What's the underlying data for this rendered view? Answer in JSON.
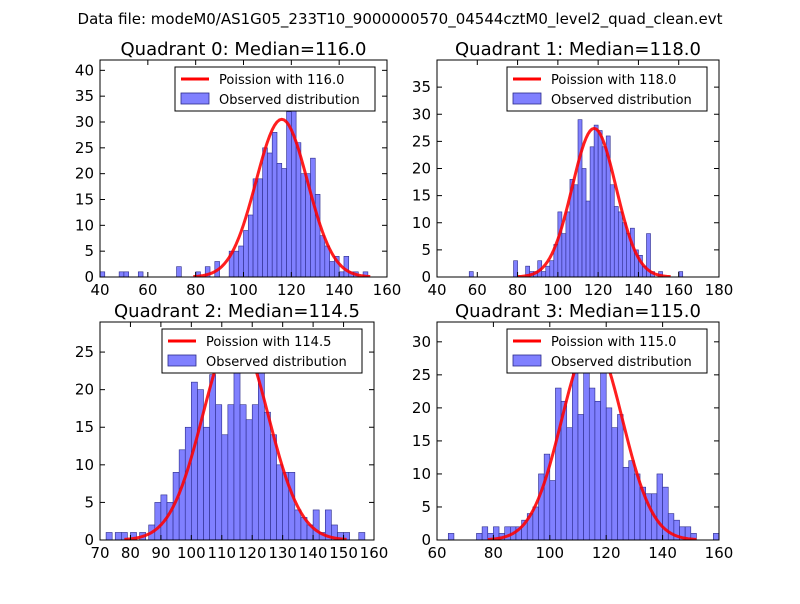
{
  "figure": {
    "suptitle": "Data file: modeM0/AS1G05_233T10_9000000570_04544cztM0_level2_quad_clean.evt"
  },
  "colors": {
    "hist_fill": "#8080ff",
    "hist_edge": "#2a2a8a",
    "curve": "#ff0000",
    "axes": "#000000",
    "background": "#ffffff"
  },
  "chart_data": [
    {
      "type": "bar",
      "title": "Quadrant 0: Median=116.0",
      "median": 116.0,
      "xlim": [
        40,
        160
      ],
      "ylim": [
        0,
        42
      ],
      "xticks": [
        40,
        60,
        80,
        100,
        120,
        140,
        160
      ],
      "yticks": [
        0,
        5,
        10,
        15,
        20,
        25,
        30,
        35,
        40
      ],
      "legend": [
        "Poission with 116.0",
        "Observed distribution"
      ],
      "legend_loc": "upper-right",
      "bins": [
        {
          "x": 40,
          "h": 1
        },
        {
          "x": 48,
          "h": 1
        },
        {
          "x": 50,
          "h": 1
        },
        {
          "x": 56,
          "h": 1
        },
        {
          "x": 72,
          "h": 2
        },
        {
          "x": 80,
          "h": 1
        },
        {
          "x": 84,
          "h": 2
        },
        {
          "x": 88,
          "h": 3
        },
        {
          "x": 94,
          "h": 5
        },
        {
          "x": 96,
          "h": 5
        },
        {
          "x": 98,
          "h": 6
        },
        {
          "x": 100,
          "h": 9
        },
        {
          "x": 102,
          "h": 12
        },
        {
          "x": 104,
          "h": 19
        },
        {
          "x": 106,
          "h": 19
        },
        {
          "x": 108,
          "h": 25
        },
        {
          "x": 110,
          "h": 24
        },
        {
          "x": 112,
          "h": 28
        },
        {
          "x": 114,
          "h": 22
        },
        {
          "x": 116,
          "h": 21
        },
        {
          "x": 118,
          "h": 32
        },
        {
          "x": 120,
          "h": 39
        },
        {
          "x": 122,
          "h": 26
        },
        {
          "x": 124,
          "h": 20
        },
        {
          "x": 126,
          "h": 20
        },
        {
          "x": 128,
          "h": 23
        },
        {
          "x": 130,
          "h": 16
        },
        {
          "x": 132,
          "h": 8
        },
        {
          "x": 134,
          "h": 6
        },
        {
          "x": 136,
          "h": 3
        },
        {
          "x": 138,
          "h": 4
        },
        {
          "x": 140,
          "h": 1
        },
        {
          "x": 142,
          "h": 4
        },
        {
          "x": 144,
          "h": 1
        },
        {
          "x": 146,
          "h": 1
        },
        {
          "x": 150,
          "h": 1
        }
      ]
    },
    {
      "type": "bar",
      "title": "Quadrant 1: Median=118.0",
      "median": 118.0,
      "xlim": [
        40,
        180
      ],
      "ylim": [
        0,
        40
      ],
      "xticks": [
        40,
        60,
        80,
        100,
        120,
        140,
        160,
        180
      ],
      "yticks": [
        0,
        5,
        10,
        15,
        20,
        25,
        30,
        35
      ],
      "legend": [
        "Poission with 118.0",
        "Observed distribution"
      ],
      "legend_loc": "upper-right",
      "bins": [
        {
          "x": 56,
          "h": 1
        },
        {
          "x": 78,
          "h": 3
        },
        {
          "x": 84,
          "h": 2
        },
        {
          "x": 86,
          "h": 1
        },
        {
          "x": 88,
          "h": 1
        },
        {
          "x": 90,
          "h": 3
        },
        {
          "x": 92,
          "h": 1
        },
        {
          "x": 94,
          "h": 2
        },
        {
          "x": 96,
          "h": 3
        },
        {
          "x": 98,
          "h": 6
        },
        {
          "x": 100,
          "h": 12
        },
        {
          "x": 102,
          "h": 8
        },
        {
          "x": 104,
          "h": 12
        },
        {
          "x": 106,
          "h": 18
        },
        {
          "x": 108,
          "h": 17
        },
        {
          "x": 110,
          "h": 29
        },
        {
          "x": 112,
          "h": 20
        },
        {
          "x": 114,
          "h": 14
        },
        {
          "x": 116,
          "h": 24
        },
        {
          "x": 118,
          "h": 28
        },
        {
          "x": 120,
          "h": 27
        },
        {
          "x": 122,
          "h": 24
        },
        {
          "x": 124,
          "h": 26
        },
        {
          "x": 126,
          "h": 17
        },
        {
          "x": 128,
          "h": 13
        },
        {
          "x": 130,
          "h": 12
        },
        {
          "x": 132,
          "h": 10
        },
        {
          "x": 134,
          "h": 8
        },
        {
          "x": 136,
          "h": 9
        },
        {
          "x": 138,
          "h": 5
        },
        {
          "x": 140,
          "h": 4
        },
        {
          "x": 142,
          "h": 2
        },
        {
          "x": 144,
          "h": 8
        },
        {
          "x": 146,
          "h": 1
        },
        {
          "x": 150,
          "h": 1
        },
        {
          "x": 160,
          "h": 1
        }
      ]
    },
    {
      "type": "bar",
      "title": "Quadrant 2: Median=114.5",
      "median": 114.5,
      "xlim": [
        70,
        160
      ],
      "ylim": [
        0,
        29
      ],
      "xticks": [
        70,
        80,
        90,
        100,
        110,
        120,
        130,
        140,
        150,
        160
      ],
      "yticks": [
        0,
        5,
        10,
        15,
        20,
        25
      ],
      "legend": [
        "Poission with 114.5",
        "Observed distribution"
      ],
      "legend_loc": "upper-right",
      "bins": [
        {
          "x": 72,
          "h": 1
        },
        {
          "x": 75,
          "h": 1
        },
        {
          "x": 77,
          "h": 1
        },
        {
          "x": 80,
          "h": 1
        },
        {
          "x": 83,
          "h": 1
        },
        {
          "x": 86,
          "h": 2
        },
        {
          "x": 88,
          "h": 5
        },
        {
          "x": 90,
          "h": 6
        },
        {
          "x": 92,
          "h": 5
        },
        {
          "x": 94,
          "h": 9
        },
        {
          "x": 96,
          "h": 12
        },
        {
          "x": 98,
          "h": 15
        },
        {
          "x": 100,
          "h": 21
        },
        {
          "x": 102,
          "h": 20
        },
        {
          "x": 104,
          "h": 15
        },
        {
          "x": 106,
          "h": 22
        },
        {
          "x": 108,
          "h": 18
        },
        {
          "x": 110,
          "h": 14
        },
        {
          "x": 112,
          "h": 18
        },
        {
          "x": 114,
          "h": 24
        },
        {
          "x": 116,
          "h": 18
        },
        {
          "x": 118,
          "h": 16
        },
        {
          "x": 120,
          "h": 18
        },
        {
          "x": 122,
          "h": 24
        },
        {
          "x": 124,
          "h": 17
        },
        {
          "x": 126,
          "h": 14
        },
        {
          "x": 128,
          "h": 10
        },
        {
          "x": 130,
          "h": 9
        },
        {
          "x": 132,
          "h": 9
        },
        {
          "x": 134,
          "h": 4
        },
        {
          "x": 136,
          "h": 3
        },
        {
          "x": 138,
          "h": 2
        },
        {
          "x": 140,
          "h": 4
        },
        {
          "x": 142,
          "h": 1
        },
        {
          "x": 144,
          "h": 4
        },
        {
          "x": 146,
          "h": 2
        },
        {
          "x": 148,
          "h": 1
        },
        {
          "x": 150,
          "h": 1
        },
        {
          "x": 155,
          "h": 1
        }
      ]
    },
    {
      "type": "bar",
      "title": "Quadrant 3: Median=115.0",
      "median": 115.0,
      "xlim": [
        60,
        160
      ],
      "ylim": [
        0,
        33
      ],
      "xticks": [
        60,
        80,
        100,
        120,
        140,
        160
      ],
      "yticks": [
        0,
        5,
        10,
        15,
        20,
        25,
        30
      ],
      "legend": [
        "Poission with 115.0",
        "Observed distribution"
      ],
      "legend_loc": "upper-right",
      "bins": [
        {
          "x": 64,
          "h": 1
        },
        {
          "x": 74,
          "h": 1
        },
        {
          "x": 76,
          "h": 2
        },
        {
          "x": 78,
          "h": 1
        },
        {
          "x": 80,
          "h": 2
        },
        {
          "x": 82,
          "h": 1
        },
        {
          "x": 84,
          "h": 2
        },
        {
          "x": 86,
          "h": 2
        },
        {
          "x": 88,
          "h": 2
        },
        {
          "x": 90,
          "h": 3
        },
        {
          "x": 92,
          "h": 4
        },
        {
          "x": 94,
          "h": 5
        },
        {
          "x": 96,
          "h": 10
        },
        {
          "x": 98,
          "h": 13
        },
        {
          "x": 100,
          "h": 9
        },
        {
          "x": 102,
          "h": 23
        },
        {
          "x": 104,
          "h": 21
        },
        {
          "x": 106,
          "h": 17
        },
        {
          "x": 108,
          "h": 26
        },
        {
          "x": 110,
          "h": 19
        },
        {
          "x": 112,
          "h": 29
        },
        {
          "x": 114,
          "h": 23
        },
        {
          "x": 116,
          "h": 21
        },
        {
          "x": 118,
          "h": 27
        },
        {
          "x": 120,
          "h": 20
        },
        {
          "x": 122,
          "h": 17
        },
        {
          "x": 124,
          "h": 19
        },
        {
          "x": 126,
          "h": 11
        },
        {
          "x": 128,
          "h": 12
        },
        {
          "x": 130,
          "h": 10
        },
        {
          "x": 132,
          "h": 8
        },
        {
          "x": 134,
          "h": 7
        },
        {
          "x": 136,
          "h": 7
        },
        {
          "x": 138,
          "h": 10
        },
        {
          "x": 140,
          "h": 8
        },
        {
          "x": 142,
          "h": 4
        },
        {
          "x": 144,
          "h": 3
        },
        {
          "x": 146,
          "h": 2
        },
        {
          "x": 148,
          "h": 2
        },
        {
          "x": 150,
          "h": 1
        },
        {
          "x": 158,
          "h": 1
        }
      ]
    }
  ]
}
